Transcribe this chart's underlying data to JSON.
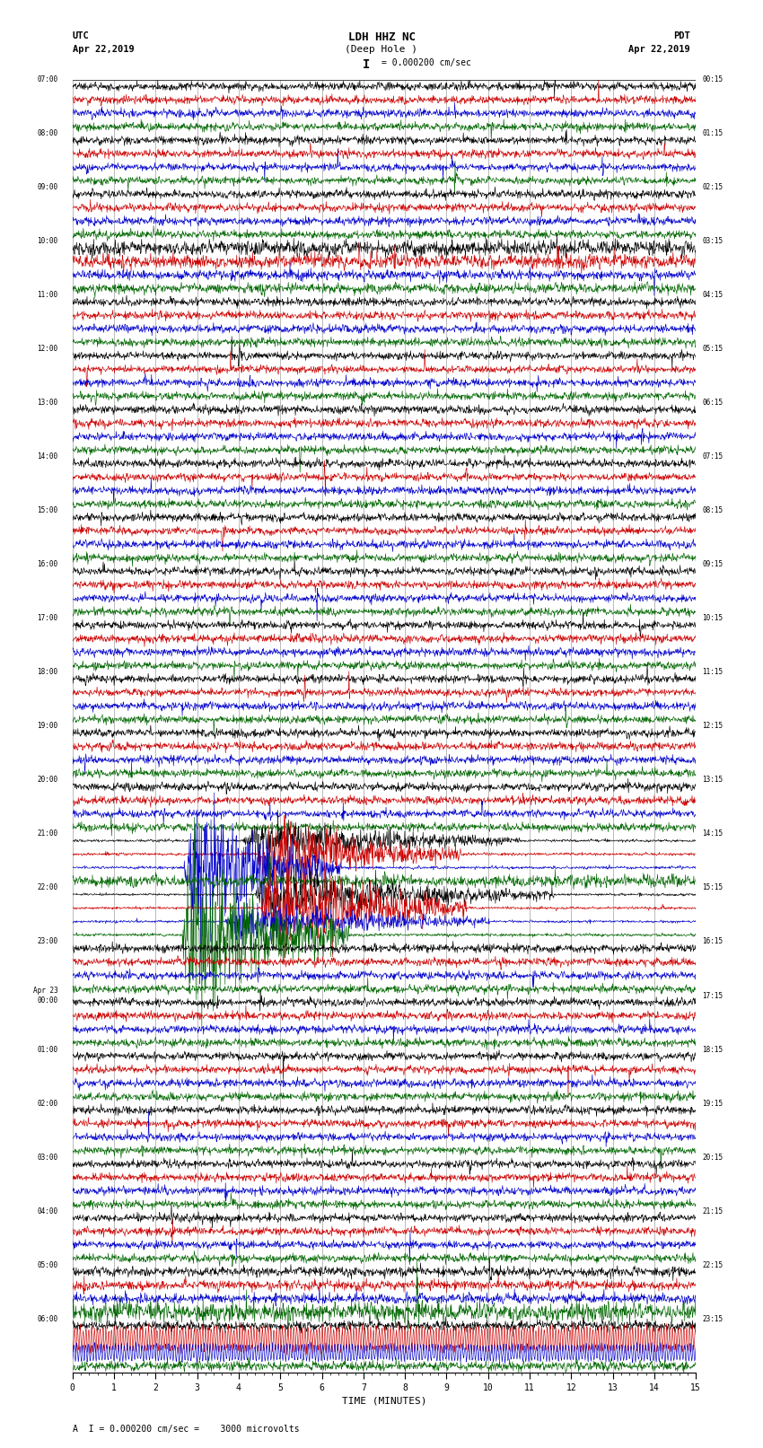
{
  "title_line1": "LDH HHZ NC",
  "title_line2": "(Deep Hole )",
  "scale_label": "I = 0.000200 cm/sec",
  "footer_label": "A  I = 0.000200 cm/sec =    3000 microvolts",
  "utc_label": "UTC",
  "utc_date": "Apr 22,2019",
  "pdt_label": "PDT",
  "pdt_date": "Apr 22,2019",
  "xlabel": "TIME (MINUTES)",
  "bg_color": "#ffffff",
  "trace_colors": [
    "#000000",
    "#cc0000",
    "#0000cc",
    "#006600"
  ],
  "left_times": [
    "07:00",
    "08:00",
    "09:00",
    "10:00",
    "11:00",
    "12:00",
    "13:00",
    "14:00",
    "15:00",
    "16:00",
    "17:00",
    "18:00",
    "19:00",
    "20:00",
    "21:00",
    "22:00",
    "23:00",
    "Apr 23\n00:00",
    "01:00",
    "02:00",
    "03:00",
    "04:00",
    "05:00",
    "06:00"
  ],
  "right_times": [
    "00:15",
    "01:15",
    "02:15",
    "03:15",
    "04:15",
    "05:15",
    "06:15",
    "07:15",
    "08:15",
    "09:15",
    "10:15",
    "11:15",
    "12:15",
    "13:15",
    "14:15",
    "15:15",
    "16:15",
    "17:15",
    "18:15",
    "19:15",
    "20:15",
    "21:15",
    "22:15",
    "23:15"
  ],
  "n_groups": 24,
  "n_traces_per_group": 4,
  "xmin": 0,
  "xmax": 15,
  "xticks": [
    0,
    1,
    2,
    3,
    4,
    5,
    6,
    7,
    8,
    9,
    10,
    11,
    12,
    13,
    14,
    15
  ],
  "event_group": 14,
  "event_group2": 15,
  "sinusoidal_group": 23,
  "large_amp_groups": [
    3
  ]
}
